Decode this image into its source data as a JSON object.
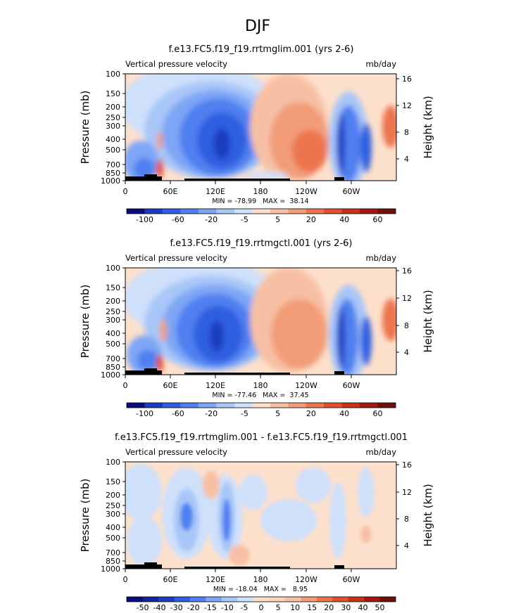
{
  "figure_title": "DJF",
  "panels": [
    {
      "title": "f.e13.FC5.f19_f19.rrtmglim.001 (yrs 2-6)",
      "left_label": "Vertical pressure velocity",
      "right_label": "mb/day",
      "stats": "MIN = -78.99   MAX =  38.14"
    },
    {
      "title": "f.e13.FC5.f19_f19.rrtmgctl.001 (yrs 2-6)",
      "left_label": "Vertical pressure velocity",
      "right_label": "mb/day",
      "stats": "MIN = -77.46   MAX =  37.45"
    },
    {
      "title": "f.e13.FC5.f19_f19.rrtmglim.001 - f.e13.FC5.f19_f19.rrtmgctl.001",
      "left_label": "Vertical pressure velocity",
      "right_label": "mb/day",
      "stats": "MIN = -18.04   MAX =   8.95"
    }
  ],
  "chart_data": [
    {
      "type": "heatmap",
      "title": "f.e13.FC5.f19_f19.rrtmglim.001 (yrs 2-6)",
      "ylabel": "Pressure (mb)",
      "y2label": "Height (km)",
      "xticks": [
        "0",
        "60E",
        "120E",
        "180",
        "120W",
        "60W"
      ],
      "yticks": [
        "100",
        "150",
        "200",
        "250",
        "300",
        "400",
        "500",
        "700",
        "850",
        "1000"
      ],
      "y2ticks": [
        "16",
        "12",
        "8",
        "4"
      ],
      "colorbar_labels": [
        "-100",
        "-60",
        "-20",
        "-5",
        "5",
        "20",
        "40",
        "60"
      ],
      "colorbar_colors": [
        "#0a0a78",
        "#1a3cc0",
        "#2f5fe0",
        "#4f7ff0",
        "#7ea6f6",
        "#a8c6f8",
        "#cfe0fb",
        "#fde0cc",
        "#f7c0a4",
        "#f29c78",
        "#ec7550",
        "#e1502e",
        "#c8321a",
        "#a01810",
        "#701008"
      ],
      "min": -78.99,
      "max": 38.14,
      "units": "mb/day"
    },
    {
      "type": "heatmap",
      "title": "f.e13.FC5.f19_f19.rrtmgctl.001 (yrs 2-6)",
      "ylabel": "Pressure (mb)",
      "y2label": "Height (km)",
      "xticks": [
        "0",
        "60E",
        "120E",
        "180",
        "120W",
        "60W"
      ],
      "yticks": [
        "100",
        "150",
        "200",
        "250",
        "300",
        "400",
        "500",
        "700",
        "850",
        "1000"
      ],
      "y2ticks": [
        "16",
        "12",
        "8",
        "4"
      ],
      "colorbar_labels": [
        "-100",
        "-60",
        "-20",
        "-5",
        "5",
        "20",
        "40",
        "60"
      ],
      "colorbar_colors": [
        "#0a0a78",
        "#1a3cc0",
        "#2f5fe0",
        "#4f7ff0",
        "#7ea6f6",
        "#a8c6f8",
        "#cfe0fb",
        "#fde0cc",
        "#f7c0a4",
        "#f29c78",
        "#ec7550",
        "#e1502e",
        "#c8321a",
        "#a01810",
        "#701008"
      ],
      "min": -77.46,
      "max": 37.45,
      "units": "mb/day"
    },
    {
      "type": "heatmap",
      "title": "f.e13.FC5.f19_f19.rrtmglim.001 - f.e13.FC5.f19_f19.rrtmgctl.001",
      "ylabel": "Pressure (mb)",
      "y2label": "Height (km)",
      "xticks": [
        "0",
        "60E",
        "120E",
        "180",
        "120W",
        "60W"
      ],
      "yticks": [
        "100",
        "150",
        "200",
        "250",
        "300",
        "400",
        "500",
        "700",
        "850",
        "1000"
      ],
      "y2ticks": [
        "16",
        "12",
        "8",
        "4"
      ],
      "colorbar_labels": [
        "-50",
        "-40",
        "-30",
        "-20",
        "-15",
        "-10",
        "-5",
        "0",
        "5",
        "10",
        "15",
        "20",
        "30",
        "40",
        "50"
      ],
      "colorbar_colors": [
        "#0a0a78",
        "#14249a",
        "#1e3cc0",
        "#2f5fe0",
        "#4f7ff0",
        "#7ea6f6",
        "#a8c6f8",
        "#cfe0fb",
        "#fde0cc",
        "#fbd2b8",
        "#f7c0a4",
        "#f29c78",
        "#ec7550",
        "#e1502e",
        "#c8321a",
        "#a01810",
        "#701008"
      ],
      "min": -18.04,
      "max": 8.95,
      "units": "mb/day"
    }
  ]
}
